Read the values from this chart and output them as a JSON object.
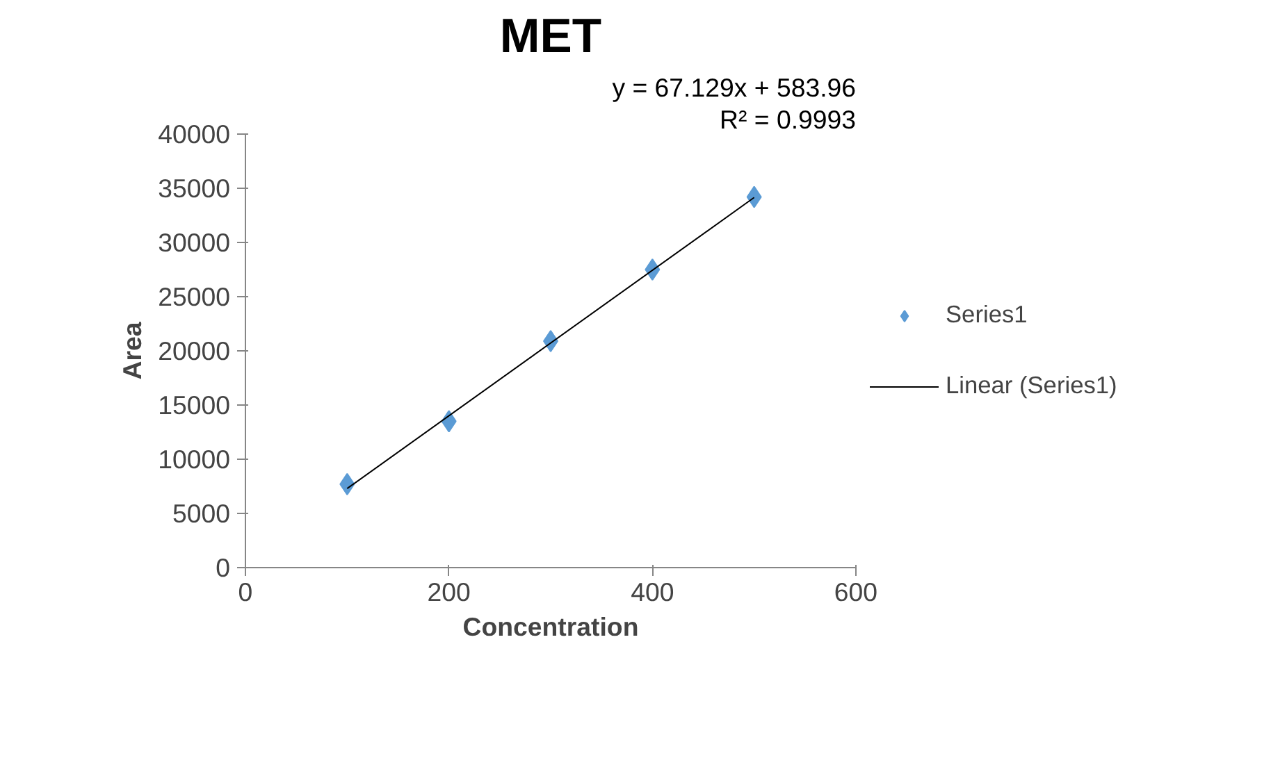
{
  "chart_data": {
    "type": "scatter",
    "title": "MET",
    "xlabel": "Concentration",
    "ylabel": "Area",
    "x": [
      100,
      200,
      300,
      400,
      500
    ],
    "series": [
      {
        "name": "Series1",
        "color": "#5b9bd5",
        "marker": "diamond",
        "values": [
          7700,
          13500,
          20900,
          27500,
          34200
        ]
      },
      {
        "name": "Linear (Series1)",
        "type": "line",
        "color": "#000000",
        "x": [
          100,
          500
        ],
        "values": [
          7300,
          34150
        ]
      }
    ],
    "annotations": [
      "y = 67.129x + 583.96",
      "R² = 0.9993"
    ],
    "xlim": [
      0,
      600
    ],
    "xticks": [
      0,
      200,
      400,
      600
    ],
    "ylim": [
      0,
      40000
    ],
    "yticks": [
      0,
      5000,
      10000,
      15000,
      20000,
      25000,
      30000,
      35000,
      40000
    ],
    "grid": false,
    "legend": "right"
  }
}
